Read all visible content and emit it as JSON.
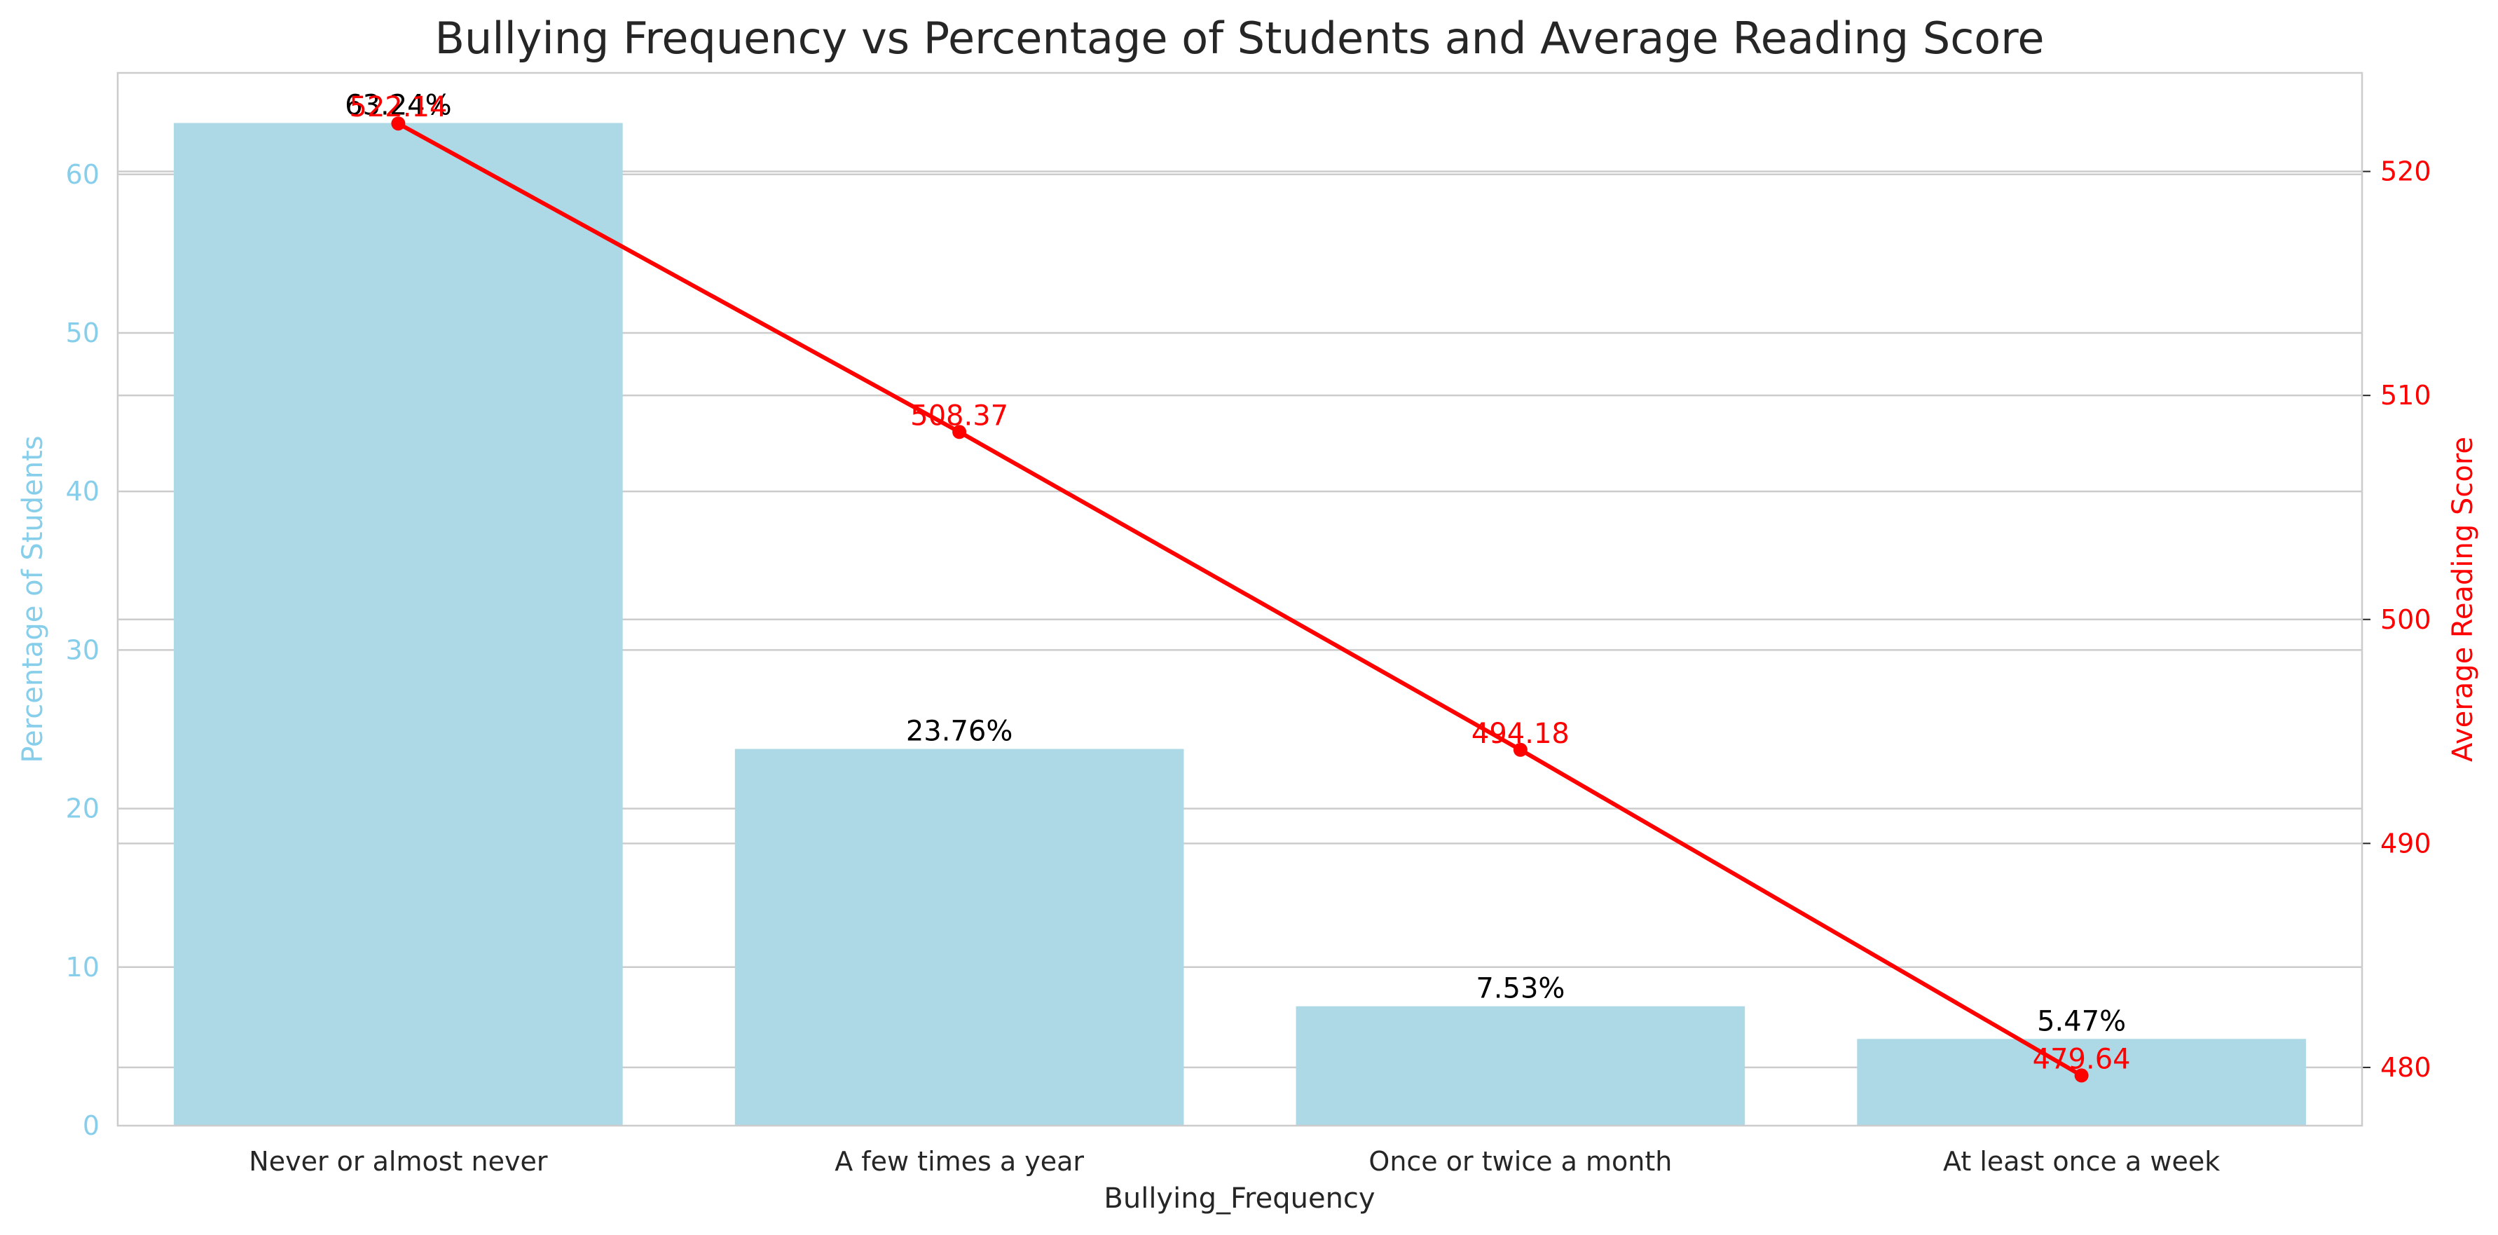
{
  "chart_data": {
    "type": "bar",
    "title": "Bullying Frequency vs Percentage of Students and Average Reading Score",
    "xlabel": "Bullying_Frequency",
    "categories": [
      "Never or almost never",
      "A few times a year",
      "Once or twice a month",
      "At least once a week"
    ],
    "bars": {
      "ylabel": "Percentage of Students",
      "values": [
        63.24,
        23.76,
        7.53,
        5.47
      ],
      "labels": [
        "63.24%",
        "23.76%",
        "7.53%",
        "5.47%"
      ],
      "ylim": [
        0,
        66.4
      ],
      "ticks": [
        "0",
        "10",
        "20",
        "30",
        "40",
        "50",
        "60"
      ],
      "color": "#add8e6",
      "axis_color": "#87ceeb"
    },
    "line": {
      "type": "line",
      "ylabel": "Average Reading Score",
      "values": [
        522.14,
        508.37,
        494.18,
        479.64
      ],
      "labels": [
        "522.14",
        "508.37",
        "494.18",
        "479.64"
      ],
      "ylim": [
        477.4,
        524.4
      ],
      "ticks": [
        "480",
        "490",
        "500",
        "510",
        "520"
      ],
      "color": "#ff0000"
    },
    "grid": true,
    "legend": "none"
  }
}
